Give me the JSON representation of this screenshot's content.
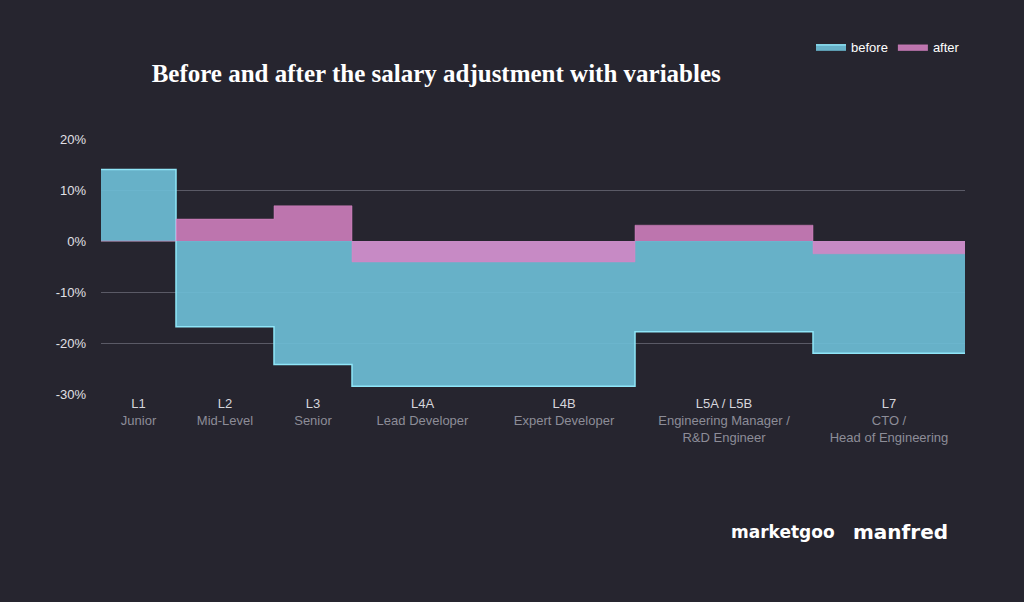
{
  "chart_data": {
    "type": "step_area",
    "title": "Before and after the salary adjustment with variables",
    "categories": [
      "L1\nJunior",
      "L2\nMid-Level",
      "L3\nSenior",
      "L4A\nLead Developer",
      "L4B\nExpert Developer",
      "L5A / L5B\nEngineering Manager /\nR&D Engineer",
      "L7\nCTO /\nHead of Engineering"
    ],
    "series": [
      {
        "name": "before",
        "color": "#6cbdd6",
        "values": [
          14,
          -16.8,
          -24.2,
          -28.5,
          -28.5,
          -17.8,
          -22
        ]
      },
      {
        "name": "after",
        "color": "#d884c4",
        "values": [
          0,
          4.3,
          6.9,
          -4.1,
          -4.1,
          3.1,
          -2.5
        ]
      }
    ],
    "ylim": [
      -30,
      20
    ],
    "yticks": [
      {
        "value": -30,
        "label": "-30%"
      },
      {
        "value": -20,
        "label": "-20%"
      },
      {
        "value": -10,
        "label": "-10%"
      },
      {
        "value": 0,
        "label": "0%"
      },
      {
        "value": 10,
        "label": "10%"
      },
      {
        "value": 20,
        "label": "20%"
      }
    ],
    "grid": true,
    "legend": "top right",
    "annotations": [
      "marketgoo",
      "manfred"
    ]
  }
}
